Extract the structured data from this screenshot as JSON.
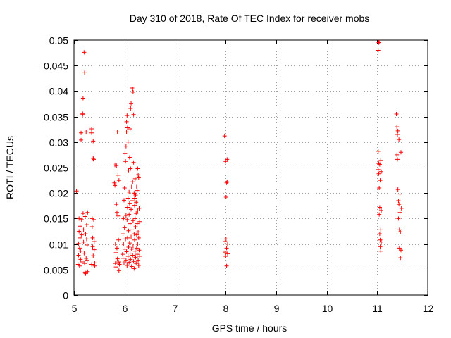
{
  "chart_data": {
    "type": "scatter",
    "title": "Day 310 of 2018, Rate Of TEC Index for receiver mobs",
    "xlabel": "GPS time / hours",
    "ylabel": "ROTI / TECUs",
    "xlim": [
      5,
      12
    ],
    "ylim": [
      0,
      0.05
    ],
    "x_ticks": [
      5,
      6,
      7,
      8,
      9,
      10,
      11,
      12
    ],
    "x_tick_labels": [
      "5",
      "6",
      "7",
      "8",
      "9",
      "10",
      "11",
      "12"
    ],
    "y_ticks": [
      0,
      0.005,
      0.01,
      0.015,
      0.02,
      0.025,
      0.03,
      0.035,
      0.04,
      0.045,
      0.05
    ],
    "y_tick_labels": [
      "0",
      "0.005",
      "0.01",
      "0.015",
      "0.02",
      "0.025",
      "0.03",
      "0.035",
      "0.04",
      "0.045",
      "0.05"
    ],
    "grid": true,
    "marker": "+",
    "color": "#ff0000",
    "series": [
      {
        "name": "mobs",
        "points": [
          [
            5.05,
            0.0204
          ],
          [
            5.08,
            0.006
          ],
          [
            5.09,
            0.0078
          ],
          [
            5.09,
            0.0101
          ],
          [
            5.1,
            0.0125
          ],
          [
            5.1,
            0.015
          ],
          [
            5.11,
            0.0092
          ],
          [
            5.11,
            0.0057
          ],
          [
            5.12,
            0.0135
          ],
          [
            5.12,
            0.0112
          ],
          [
            5.13,
            0.0086
          ],
          [
            5.13,
            0.007
          ],
          [
            5.14,
            0.0304
          ],
          [
            5.14,
            0.0318
          ],
          [
            5.15,
            0.0148
          ],
          [
            5.15,
            0.0118
          ],
          [
            5.16,
            0.0096
          ],
          [
            5.16,
            0.0065
          ],
          [
            5.17,
            0.0356
          ],
          [
            5.17,
            0.0354
          ],
          [
            5.18,
            0.0386
          ],
          [
            5.18,
            0.016
          ],
          [
            5.19,
            0.0128
          ],
          [
            5.19,
            0.0104
          ],
          [
            5.2,
            0.0476
          ],
          [
            5.2,
            0.0082
          ],
          [
            5.21,
            0.0436
          ],
          [
            5.21,
            0.0062
          ],
          [
            5.22,
            0.0045
          ],
          [
            5.22,
            0.0154
          ],
          [
            5.23,
            0.012
          ],
          [
            5.23,
            0.0042
          ],
          [
            5.24,
            0.032
          ],
          [
            5.24,
            0.0072
          ],
          [
            5.25,
            0.0138
          ],
          [
            5.25,
            0.011
          ],
          [
            5.26,
            0.0098
          ],
          [
            5.26,
            0.0068
          ],
          [
            5.27,
            0.0162
          ],
          [
            5.27,
            0.0046
          ],
          [
            5.35,
            0.0326
          ],
          [
            5.35,
            0.0318
          ],
          [
            5.35,
            0.006
          ],
          [
            5.36,
            0.015
          ],
          [
            5.36,
            0.0134
          ],
          [
            5.37,
            0.0112
          ],
          [
            5.37,
            0.0095
          ],
          [
            5.38,
            0.0302
          ],
          [
            5.38,
            0.0268
          ],
          [
            5.38,
            0.0077
          ],
          [
            5.39,
            0.0266
          ],
          [
            5.39,
            0.0148
          ],
          [
            5.4,
            0.0105
          ],
          [
            5.4,
            0.0089
          ],
          [
            5.41,
            0.0063
          ],
          [
            5.41,
            0.0057
          ],
          [
            5.8,
            0.022
          ],
          [
            5.81,
            0.0215
          ],
          [
            5.81,
            0.0255
          ],
          [
            5.82,
            0.01
          ],
          [
            5.82,
            0.0062
          ],
          [
            5.83,
            0.0083
          ],
          [
            5.83,
            0.0055
          ],
          [
            5.84,
            0.0254
          ],
          [
            5.84,
            0.0178
          ],
          [
            5.85,
            0.0162
          ],
          [
            5.85,
            0.0092
          ],
          [
            5.86,
            0.032
          ],
          [
            5.86,
            0.0071
          ],
          [
            5.87,
            0.0155
          ],
          [
            5.87,
            0.0235
          ],
          [
            5.88,
            0.0108
          ],
          [
            5.88,
            0.0065
          ],
          [
            5.89,
            0.0225
          ],
          [
            5.89,
            0.0048
          ],
          [
            5.9,
            0.006
          ],
          [
            5.96,
            0.008
          ],
          [
            5.97,
            0.012
          ],
          [
            5.97,
            0.0072
          ],
          [
            5.98,
            0.015
          ],
          [
            5.98,
            0.01
          ],
          [
            5.99,
            0.0186
          ],
          [
            5.99,
            0.0063
          ],
          [
            6.0,
            0.021
          ],
          [
            6.0,
            0.0132
          ],
          [
            6.01,
            0.0278
          ],
          [
            6.01,
            0.009
          ],
          [
            6.02,
            0.0262
          ],
          [
            6.02,
            0.011
          ],
          [
            6.03,
            0.0292
          ],
          [
            6.03,
            0.0156
          ],
          [
            6.03,
            0.0068
          ],
          [
            6.04,
            0.032
          ],
          [
            6.04,
            0.034
          ],
          [
            6.04,
            0.0085
          ],
          [
            6.05,
            0.0352
          ],
          [
            6.05,
            0.0148
          ],
          [
            6.05,
            0.0058
          ],
          [
            6.06,
            0.0328
          ],
          [
            6.06,
            0.0172
          ],
          [
            6.06,
            0.0112
          ],
          [
            6.07,
            0.03
          ],
          [
            6.07,
            0.019
          ],
          [
            6.07,
            0.0076
          ],
          [
            6.08,
            0.0245
          ],
          [
            6.08,
            0.0126
          ],
          [
            6.08,
            0.0094
          ],
          [
            6.09,
            0.0202
          ],
          [
            6.09,
            0.0158
          ],
          [
            6.09,
            0.0064
          ],
          [
            6.1,
            0.027
          ],
          [
            6.1,
            0.018
          ],
          [
            6.1,
            0.0102
          ],
          [
            6.11,
            0.0326
          ],
          [
            6.11,
            0.014
          ],
          [
            6.11,
            0.0082
          ],
          [
            6.12,
            0.0366
          ],
          [
            6.12,
            0.0248
          ],
          [
            6.12,
            0.007
          ],
          [
            6.13,
            0.0376
          ],
          [
            6.13,
            0.0168
          ],
          [
            6.13,
            0.0114
          ],
          [
            6.14,
            0.0212
          ],
          [
            6.14,
            0.009
          ],
          [
            6.14,
            0.0056
          ],
          [
            6.15,
            0.0406
          ],
          [
            6.15,
            0.0185
          ],
          [
            6.15,
            0.0128
          ],
          [
            6.16,
            0.0404
          ],
          [
            6.16,
            0.0222
          ],
          [
            6.16,
            0.0078
          ],
          [
            6.17,
            0.0398
          ],
          [
            6.17,
            0.0146
          ],
          [
            6.17,
            0.0096
          ],
          [
            6.18,
            0.0354
          ],
          [
            6.18,
            0.026
          ],
          [
            6.18,
            0.0066
          ],
          [
            6.19,
            0.02
          ],
          [
            6.19,
            0.012
          ],
          [
            6.19,
            0.0052
          ],
          [
            6.2,
            0.019
          ],
          [
            6.2,
            0.0176
          ],
          [
            6.2,
            0.0108
          ],
          [
            6.21,
            0.0228
          ],
          [
            6.21,
            0.015
          ],
          [
            6.21,
            0.0086
          ],
          [
            6.22,
            0.0196
          ],
          [
            6.22,
            0.0134
          ],
          [
            6.22,
            0.0074
          ],
          [
            6.23,
            0.0182
          ],
          [
            6.23,
            0.016
          ],
          [
            6.23,
            0.0062
          ],
          [
            6.24,
            0.0212
          ],
          [
            6.24,
            0.0118
          ],
          [
            6.24,
            0.0092
          ],
          [
            6.25,
            0.0205
          ],
          [
            6.25,
            0.014
          ],
          [
            6.25,
            0.008
          ],
          [
            6.26,
            0.0248
          ],
          [
            6.26,
            0.0165
          ],
          [
            6.26,
            0.01
          ],
          [
            6.27,
            0.0236
          ],
          [
            6.27,
            0.0124
          ],
          [
            6.27,
            0.0068
          ],
          [
            6.28,
            0.023
          ],
          [
            6.28,
            0.0112
          ],
          [
            6.28,
            0.0058
          ],
          [
            6.29,
            0.017
          ],
          [
            6.29,
            0.0088
          ],
          [
            6.3,
            0.0076
          ],
          [
            6.3,
            0.0144
          ],
          [
            7.98,
            0.0312
          ],
          [
            7.99,
            0.0105
          ],
          [
            7.99,
            0.0084
          ],
          [
            8.0,
            0.0262
          ],
          [
            8.0,
            0.0076
          ],
          [
            8.01,
            0.0192
          ],
          [
            8.01,
            0.011
          ],
          [
            8.02,
            0.022
          ],
          [
            8.02,
            0.0092
          ],
          [
            8.02,
            0.0057
          ],
          [
            8.03,
            0.0266
          ],
          [
            8.03,
            0.0222
          ],
          [
            8.04,
            0.01
          ],
          [
            8.04,
            0.0081
          ],
          [
            11.02,
            0.048
          ],
          [
            11.02,
            0.0282
          ],
          [
            11.02,
            0.0246
          ],
          [
            11.03,
            0.0495
          ],
          [
            11.03,
            0.0258
          ],
          [
            11.03,
            0.0238
          ],
          [
            11.04,
            0.0496
          ],
          [
            11.04,
            0.021
          ],
          [
            11.04,
            0.0158
          ],
          [
            11.05,
            0.0256
          ],
          [
            11.05,
            0.0172
          ],
          [
            11.05,
            0.012
          ],
          [
            11.06,
            0.0225
          ],
          [
            11.06,
            0.0108
          ],
          [
            11.06,
            0.0095
          ],
          [
            11.07,
            0.0264
          ],
          [
            11.07,
            0.0128
          ],
          [
            11.07,
            0.0086
          ],
          [
            11.08,
            0.0242
          ],
          [
            11.08,
            0.0166
          ],
          [
            11.08,
            0.0104
          ],
          [
            11.38,
            0.0355
          ],
          [
            11.39,
            0.033
          ],
          [
            11.39,
            0.0275
          ],
          [
            11.4,
            0.0315
          ],
          [
            11.4,
            0.0266
          ],
          [
            11.41,
            0.0322
          ],
          [
            11.41,
            0.0207
          ],
          [
            11.42,
            0.0185
          ],
          [
            11.42,
            0.015
          ],
          [
            11.43,
            0.0305
          ],
          [
            11.43,
            0.0178
          ],
          [
            11.44,
            0.0128
          ],
          [
            11.44,
            0.0092
          ],
          [
            11.45,
            0.0198
          ],
          [
            11.45,
            0.0162
          ],
          [
            11.46,
            0.0124
          ],
          [
            11.46,
            0.0073
          ],
          [
            11.47,
            0.028
          ],
          [
            11.47,
            0.0088
          ],
          [
            11.48,
            0.017
          ]
        ]
      }
    ]
  }
}
